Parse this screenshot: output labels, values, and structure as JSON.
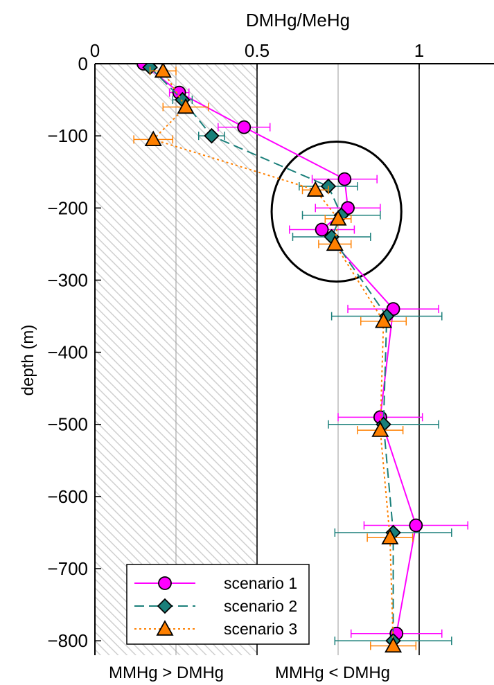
{
  "chart_data": {
    "type": "line",
    "title": "DMHg/MeHg",
    "xlabel": "DMHg/MeHg",
    "ylabel": "depth (m)",
    "xlim": [
      0,
      1.25
    ],
    "ylim": [
      -820,
      0
    ],
    "x_ticks": [
      0,
      0.5,
      1
    ],
    "x_tick_labels": [
      "0",
      "0.5",
      "1"
    ],
    "y_ticks": [
      0,
      -100,
      -200,
      -300,
      -400,
      -500,
      -600,
      -700,
      -800
    ],
    "y_tick_labels": [
      "0",
      "−100",
      "−200",
      "−300",
      "−400",
      "−500",
      "−600",
      "−700",
      "−800"
    ],
    "vertical_lines": [
      {
        "x": 0.25,
        "style": "thin gray"
      },
      {
        "x": 0.5,
        "style": "black"
      },
      {
        "x": 0.75,
        "style": "thin gray"
      },
      {
        "x": 1.0,
        "style": "black"
      }
    ],
    "shaded_region": {
      "x_from": 0,
      "x_to": 0.5,
      "pattern": "diagonal-hatch",
      "color": "#d0d0d0"
    },
    "bottom_annotations": [
      "MMHg > DMHg",
      "MMHg < DMHg"
    ],
    "highlight_circle": {
      "center_x": 0.745,
      "center_depth": -205,
      "radius_x": 0.2,
      "radius_depth": 97,
      "note": "circle drawn around 160–250 m samples"
    },
    "legend_position": "bottom-center",
    "series": [
      {
        "name": "scenario 1",
        "color": "#ff00ff",
        "marker": "circle",
        "line_style": "solid",
        "points": [
          {
            "x": 0.15,
            "y": 0,
            "err": null
          },
          {
            "x": 0.26,
            "y": -40,
            "err": 0.03
          },
          {
            "x": 0.46,
            "y": -88,
            "err": 0.08
          },
          {
            "x": 0.77,
            "y": -160,
            "err": 0.1
          },
          {
            "x": 0.78,
            "y": -200,
            "err": 0.1
          },
          {
            "x": 0.7,
            "y": -230,
            "err": 0.1
          },
          {
            "x": 0.92,
            "y": -340,
            "err": 0.14
          },
          {
            "x": 0.88,
            "y": -490,
            "err": 0.13
          },
          {
            "x": 0.99,
            "y": -640,
            "err": 0.16
          },
          {
            "x": 0.93,
            "y": -790,
            "err": 0.14
          }
        ]
      },
      {
        "name": "scenario 2",
        "color": "#1a7f7a",
        "marker": "diamond",
        "line_style": "dashed",
        "points": [
          {
            "x": 0.17,
            "y": -5,
            "err": null
          },
          {
            "x": 0.27,
            "y": -50,
            "err": 0.03
          },
          {
            "x": 0.36,
            "y": -100,
            "err": 0.04
          },
          {
            "x": 0.72,
            "y": -170,
            "err": 0.09
          },
          {
            "x": 0.76,
            "y": -210,
            "err": 0.12
          },
          {
            "x": 0.73,
            "y": -240,
            "err": 0.12
          },
          {
            "x": 0.9,
            "y": -350,
            "err": 0.17
          },
          {
            "x": 0.89,
            "y": -500,
            "err": 0.17
          },
          {
            "x": 0.92,
            "y": -650,
            "err": 0.18
          },
          {
            "x": 0.92,
            "y": -800,
            "err": 0.18
          }
        ]
      },
      {
        "name": "scenario 3",
        "color": "#ff8000",
        "marker": "triangle",
        "line_style": "dotted",
        "points": [
          {
            "x": 0.21,
            "y": -10,
            "err": 0.04
          },
          {
            "x": 0.28,
            "y": -60,
            "err": 0.07
          },
          {
            "x": 0.18,
            "y": -105,
            "err": 0.06
          },
          {
            "x": 0.68,
            "y": -175,
            "err": 0.04
          },
          {
            "x": 0.75,
            "y": -215,
            "err": 0.04
          },
          {
            "x": 0.74,
            "y": -250,
            "err": 0.05
          },
          {
            "x": 0.89,
            "y": -357,
            "err": 0.07
          },
          {
            "x": 0.88,
            "y": -508,
            "err": 0.07
          },
          {
            "x": 0.91,
            "y": -657,
            "err": 0.07
          },
          {
            "x": 0.92,
            "y": -807,
            "err": 0.07
          }
        ]
      }
    ]
  }
}
